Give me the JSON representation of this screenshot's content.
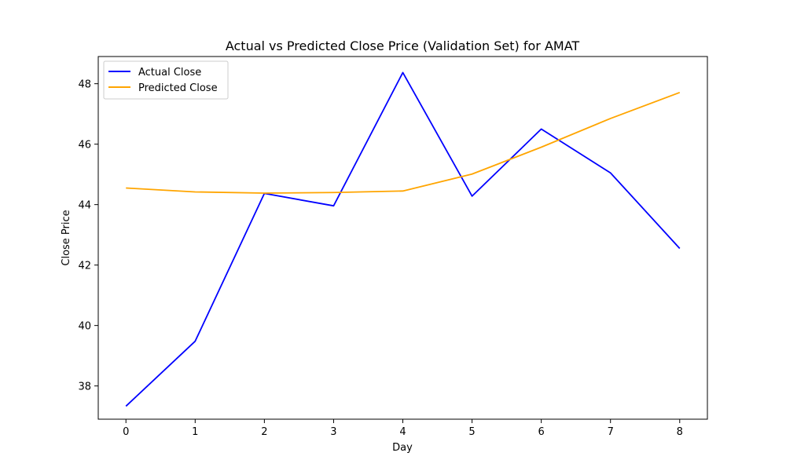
{
  "chart_data": {
    "type": "line",
    "title": "Actual vs Predicted Close Price (Validation Set) for AMAT",
    "xlabel": "Day",
    "ylabel": "Close Price",
    "x": [
      0,
      1,
      2,
      3,
      4,
      5,
      6,
      7,
      8
    ],
    "xlim": [
      -0.4,
      8.4
    ],
    "ylim": [
      36.9,
      48.9
    ],
    "xticks": [
      0,
      1,
      2,
      3,
      4,
      5,
      6,
      7,
      8
    ],
    "yticks": [
      38,
      40,
      42,
      44,
      46,
      48
    ],
    "grid": false,
    "legend_position": "top-left",
    "series": [
      {
        "name": "Actual Close",
        "color": "#0000ff",
        "values": [
          37.33,
          39.48,
          44.37,
          43.96,
          48.37,
          44.28,
          46.5,
          45.05,
          42.55
        ]
      },
      {
        "name": "Predicted Close",
        "color": "#ffa500",
        "values": [
          44.55,
          44.42,
          44.38,
          44.4,
          44.45,
          45.01,
          45.9,
          46.85,
          47.71
        ]
      }
    ]
  }
}
